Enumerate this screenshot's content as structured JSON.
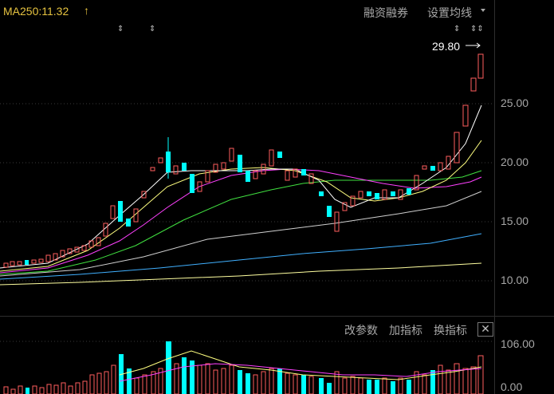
{
  "header": {
    "ma_label": "MA250:11.32",
    "ma_arrow": "↑",
    "margin_trading": "融资融券",
    "ma_settings": "设置均线"
  },
  "price_axis": [
    "25.00",
    "20.00",
    "15.00",
    "10.00"
  ],
  "latest_price_note": "29.80",
  "volume_panel": {
    "change_params": "改参数",
    "add_indicator": "加指标",
    "switch_indicator": "换指标",
    "close": "✕",
    "axis_top": "106.00",
    "axis_bottom": "0.00"
  },
  "colors": {
    "up": "#ff5e5e",
    "down": "#00ffff",
    "ma_yellow": "#ffff80",
    "ma_magenta": "#ff40ff",
    "ma_green": "#40e040",
    "ma_gray": "#d0d0d0",
    "ma_blue": "#40b0ff",
    "ma_lightyellow": "#ffffa0"
  }
}
